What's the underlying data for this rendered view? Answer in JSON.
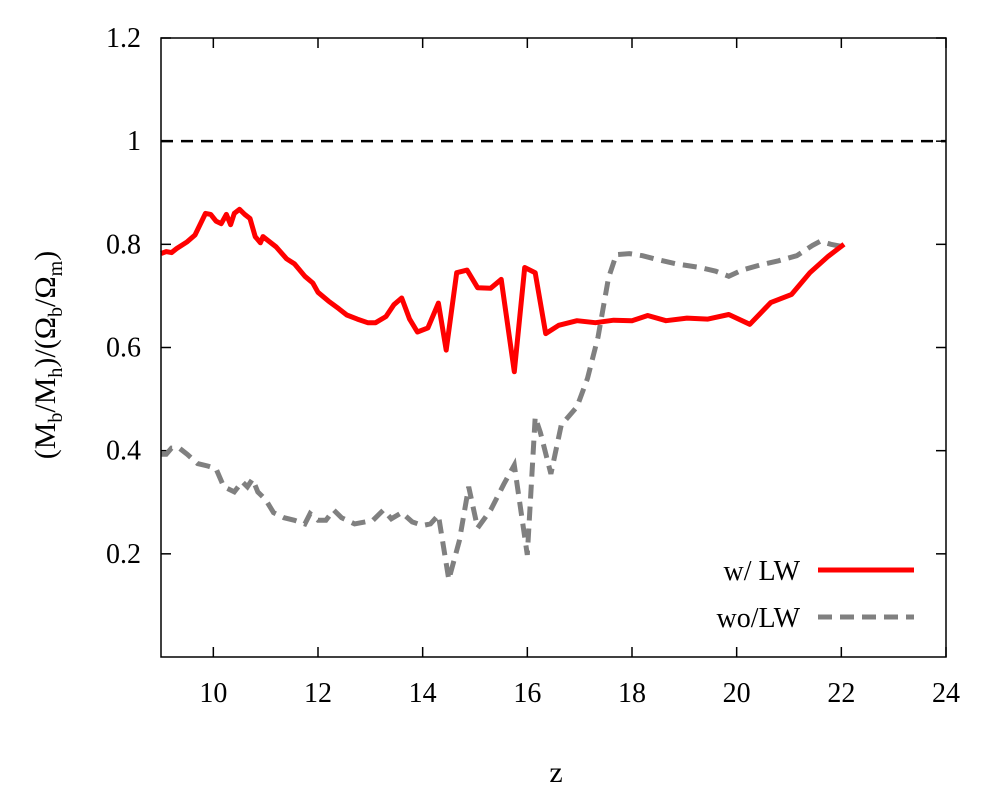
{
  "chart_data": {
    "type": "line",
    "xlabel": "z",
    "ylabel": {
      "base": "(M",
      "sub1": "b",
      "mid1": "/M",
      "sub2": "h",
      "mid2": ")/(Ω",
      "sub3": "b",
      "mid3": "/Ω",
      "sub4": "m",
      "end": ")"
    },
    "xlim": [
      9,
      24
    ],
    "ylim": [
      0,
      1.2
    ],
    "x_ticks": [
      "10",
      "12",
      "14",
      "16",
      "18",
      "20",
      "22",
      "24"
    ],
    "x_tick_values": [
      10,
      12,
      14,
      16,
      18,
      20,
      22,
      24
    ],
    "y_ticks": [
      "0.2",
      "0.4",
      "0.6",
      "0.8",
      "1",
      "1.2"
    ],
    "y_tick_values": [
      0.2,
      0.4,
      0.6,
      0.8,
      1.0,
      1.2
    ],
    "reference_line": {
      "y": 1.0,
      "style": "dashed",
      "color": "#000000"
    },
    "legend_position": "bottom-right",
    "series": [
      {
        "name": "w/ LW",
        "color": "#ff0000",
        "style": "solid",
        "points": [
          [
            9.0,
            0.782
          ],
          [
            9.1,
            0.786
          ],
          [
            9.2,
            0.784
          ],
          [
            9.3,
            0.792
          ],
          [
            9.5,
            0.805
          ],
          [
            9.65,
            0.818
          ],
          [
            9.85,
            0.86
          ],
          [
            9.95,
            0.858
          ],
          [
            10.05,
            0.845
          ],
          [
            10.15,
            0.84
          ],
          [
            10.25,
            0.858
          ],
          [
            10.33,
            0.838
          ],
          [
            10.4,
            0.86
          ],
          [
            10.5,
            0.868
          ],
          [
            10.6,
            0.858
          ],
          [
            10.7,
            0.85
          ],
          [
            10.8,
            0.815
          ],
          [
            10.9,
            0.803
          ],
          [
            10.95,
            0.815
          ],
          [
            11.2,
            0.795
          ],
          [
            11.4,
            0.772
          ],
          [
            11.55,
            0.762
          ],
          [
            11.75,
            0.738
          ],
          [
            11.9,
            0.725
          ],
          [
            12.0,
            0.707
          ],
          [
            12.2,
            0.69
          ],
          [
            12.4,
            0.675
          ],
          [
            12.55,
            0.663
          ],
          [
            12.75,
            0.655
          ],
          [
            12.95,
            0.648
          ],
          [
            13.1,
            0.648
          ],
          [
            13.3,
            0.66
          ],
          [
            13.45,
            0.683
          ],
          [
            13.6,
            0.696
          ],
          [
            13.75,
            0.655
          ],
          [
            13.9,
            0.63
          ],
          [
            14.1,
            0.638
          ],
          [
            14.3,
            0.686
          ],
          [
            14.45,
            0.595
          ],
          [
            14.65,
            0.745
          ],
          [
            14.85,
            0.75
          ],
          [
            15.05,
            0.716
          ],
          [
            15.3,
            0.715
          ],
          [
            15.5,
            0.732
          ],
          [
            15.75,
            0.553
          ],
          [
            15.95,
            0.755
          ],
          [
            16.15,
            0.745
          ],
          [
            16.35,
            0.627
          ],
          [
            16.6,
            0.643
          ],
          [
            16.95,
            0.652
          ],
          [
            17.3,
            0.648
          ],
          [
            17.65,
            0.653
          ],
          [
            18.0,
            0.652
          ],
          [
            18.3,
            0.662
          ],
          [
            18.65,
            0.652
          ],
          [
            19.05,
            0.657
          ],
          [
            19.45,
            0.655
          ],
          [
            19.85,
            0.664
          ],
          [
            20.25,
            0.645
          ],
          [
            20.65,
            0.687
          ],
          [
            21.05,
            0.703
          ],
          [
            21.4,
            0.745
          ],
          [
            21.75,
            0.777
          ],
          [
            22.05,
            0.8
          ]
        ]
      },
      {
        "name": "wo/LW",
        "color": "#808080",
        "style": "dashed",
        "points": [
          [
            9.0,
            0.393
          ],
          [
            9.1,
            0.393
          ],
          [
            9.2,
            0.405
          ],
          [
            9.35,
            0.405
          ],
          [
            9.5,
            0.393
          ],
          [
            9.7,
            0.375
          ],
          [
            9.9,
            0.37
          ],
          [
            10.05,
            0.365
          ],
          [
            10.2,
            0.33
          ],
          [
            10.4,
            0.32
          ],
          [
            10.55,
            0.34
          ],
          [
            10.65,
            0.33
          ],
          [
            10.75,
            0.345
          ],
          [
            10.85,
            0.32
          ],
          [
            11.0,
            0.305
          ],
          [
            11.15,
            0.28
          ],
          [
            11.35,
            0.27
          ],
          [
            11.55,
            0.265
          ],
          [
            11.75,
            0.258
          ],
          [
            11.85,
            0.278
          ],
          [
            12.0,
            0.265
          ],
          [
            12.15,
            0.265
          ],
          [
            12.3,
            0.285
          ],
          [
            12.45,
            0.27
          ],
          [
            12.7,
            0.258
          ],
          [
            12.9,
            0.262
          ],
          [
            13.05,
            0.265
          ],
          [
            13.25,
            0.285
          ],
          [
            13.4,
            0.268
          ],
          [
            13.6,
            0.28
          ],
          [
            13.8,
            0.262
          ],
          [
            14.0,
            0.255
          ],
          [
            14.15,
            0.258
          ],
          [
            14.3,
            0.275
          ],
          [
            14.5,
            0.15
          ],
          [
            14.7,
            0.225
          ],
          [
            14.88,
            0.33
          ],
          [
            15.05,
            0.25
          ],
          [
            15.3,
            0.285
          ],
          [
            15.55,
            0.335
          ],
          [
            15.75,
            0.372
          ],
          [
            16.0,
            0.198
          ],
          [
            16.15,
            0.465
          ],
          [
            16.25,
            0.435
          ],
          [
            16.45,
            0.355
          ],
          [
            16.65,
            0.45
          ],
          [
            16.95,
            0.485
          ],
          [
            17.15,
            0.54
          ],
          [
            17.35,
            0.62
          ],
          [
            17.55,
            0.735
          ],
          [
            17.7,
            0.78
          ],
          [
            17.95,
            0.782
          ],
          [
            18.2,
            0.778
          ],
          [
            18.5,
            0.77
          ],
          [
            18.85,
            0.762
          ],
          [
            19.3,
            0.755
          ],
          [
            19.6,
            0.748
          ],
          [
            19.85,
            0.738
          ],
          [
            20.1,
            0.75
          ],
          [
            20.45,
            0.76
          ],
          [
            20.8,
            0.768
          ],
          [
            21.15,
            0.778
          ],
          [
            21.45,
            0.798
          ],
          [
            21.6,
            0.806
          ],
          [
            21.8,
            0.8
          ],
          [
            22.0,
            0.796
          ],
          [
            22.1,
            0.795
          ]
        ]
      }
    ]
  }
}
